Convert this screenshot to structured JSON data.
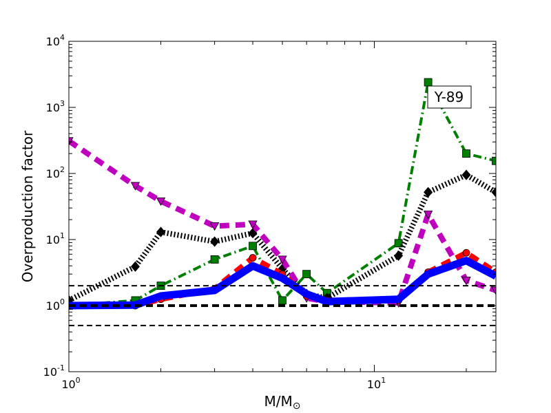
{
  "chart_data": {
    "type": "line",
    "xscale": "log",
    "yscale": "log",
    "xlim": [
      1,
      25
    ],
    "ylim": [
      0.1,
      10000
    ],
    "xlabel": "M/M",
    "xlabel_sub": "⊙",
    "ylabel": "Overproduction factor",
    "grid": false,
    "annotation": "Y-89",
    "x_ticks": [
      {
        "value": 1,
        "base": "10",
        "exp": "0"
      },
      {
        "value": 10,
        "base": "10",
        "exp": "1"
      }
    ],
    "y_ticks": [
      {
        "value": 0.1,
        "base": "10",
        "exp": "-1"
      },
      {
        "value": 1,
        "base": "10",
        "exp": "0"
      },
      {
        "value": 10,
        "base": "10",
        "exp": "1"
      },
      {
        "value": 100,
        "base": "10",
        "exp": "2"
      },
      {
        "value": 1000,
        "base": "10",
        "exp": "3"
      },
      {
        "value": 10000,
        "base": "10",
        "exp": "4"
      }
    ],
    "reference_lines": [
      {
        "y": 2,
        "style": "thin-dashed"
      },
      {
        "y": 1,
        "style": "thick-dashed"
      },
      {
        "y": 0.5,
        "style": "thin-dashed"
      }
    ],
    "series": [
      {
        "color": "#0000ff",
        "style": "solid-thick",
        "marker": "none",
        "x": [
          1,
          1.65,
          2,
          3,
          4,
          5,
          6,
          7,
          12,
          15,
          20,
          25
        ],
        "y": [
          1.0,
          1.02,
          1.4,
          1.7,
          4.0,
          2.6,
          1.5,
          1.15,
          1.25,
          3.0,
          4.8,
          2.8
        ]
      },
      {
        "color": "#ff0000",
        "style": "dashed-thick",
        "marker": "circle",
        "x": [
          1,
          1.65,
          2,
          3,
          4,
          5,
          6,
          7,
          12,
          15,
          20,
          25
        ],
        "y": [
          1.0,
          1.0,
          1.25,
          1.8,
          5.3,
          3.0,
          1.4,
          1.2,
          1.2,
          3.2,
          6.3,
          3.2
        ]
      },
      {
        "color": "#000000",
        "style": "dotted-thick",
        "marker": "diamond",
        "x": [
          1,
          1.65,
          2,
          3,
          4,
          5,
          6,
          7,
          12,
          15,
          20,
          25
        ],
        "y": [
          1.2,
          3.9,
          13.0,
          9.3,
          12.5,
          3.6,
          1.5,
          1.3,
          5.7,
          52,
          95,
          52
        ]
      },
      {
        "color": "#008000",
        "style": "dashdot-thick",
        "marker": "square",
        "x": [
          1,
          1.65,
          2,
          3,
          4,
          5,
          6,
          7,
          12,
          15,
          20,
          25
        ],
        "y": [
          1.0,
          1.2,
          2.0,
          5.0,
          8.0,
          1.2,
          3.0,
          1.55,
          8.8,
          2400,
          200,
          155
        ]
      },
      {
        "color": "#bf00bf",
        "style": "dashed-thick",
        "marker": "triangle-down",
        "x": [
          1,
          1.65,
          2,
          3,
          4,
          5,
          6,
          7,
          12,
          15,
          20,
          25
        ],
        "y": [
          310,
          65,
          38,
          16,
          17,
          5.0,
          1.3,
          1.15,
          1.1,
          24,
          2.4,
          1.7
        ]
      }
    ]
  }
}
